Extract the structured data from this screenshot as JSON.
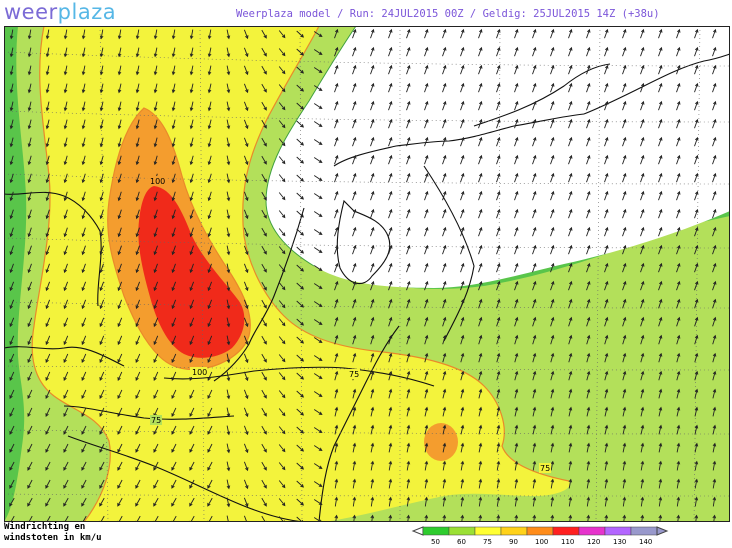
{
  "header": {
    "logo_part1": "weer",
    "logo_part2": "plaza",
    "model_label": "Weerplaza model",
    "run_label": "Run: 24JUL2015 00Z",
    "valid_label": "Geldig: 25JUL2015 14Z (+38u)"
  },
  "map": {
    "contour_labels": [
      {
        "text": "100",
        "near": "north of core"
      },
      {
        "text": "100",
        "near": "south of core"
      },
      {
        "text": "75",
        "near": "Belgium coast"
      },
      {
        "text": "75",
        "near": "west Belgium"
      },
      {
        "text": "75",
        "near": "east Germany"
      }
    ]
  },
  "legend": {
    "line1": "Windrichting en",
    "line2": "windstoten in km/u",
    "ticks": [
      "50",
      "60",
      "75",
      "90",
      "100",
      "110",
      "120",
      "130",
      "140"
    ],
    "colors": [
      "#2ecc2e",
      "#9be035",
      "#ffff33",
      "#ffd21a",
      "#ff8c1a",
      "#ff2020",
      "#e633cc",
      "#b366ff",
      "#9999cc"
    ]
  },
  "colors": {
    "white_zone": "#ffffff",
    "green_dark": "#59c54a",
    "green_light": "#b3e05a",
    "yellow": "#f3f33c",
    "orange": "#f49d2e",
    "red": "#f02a1a"
  }
}
